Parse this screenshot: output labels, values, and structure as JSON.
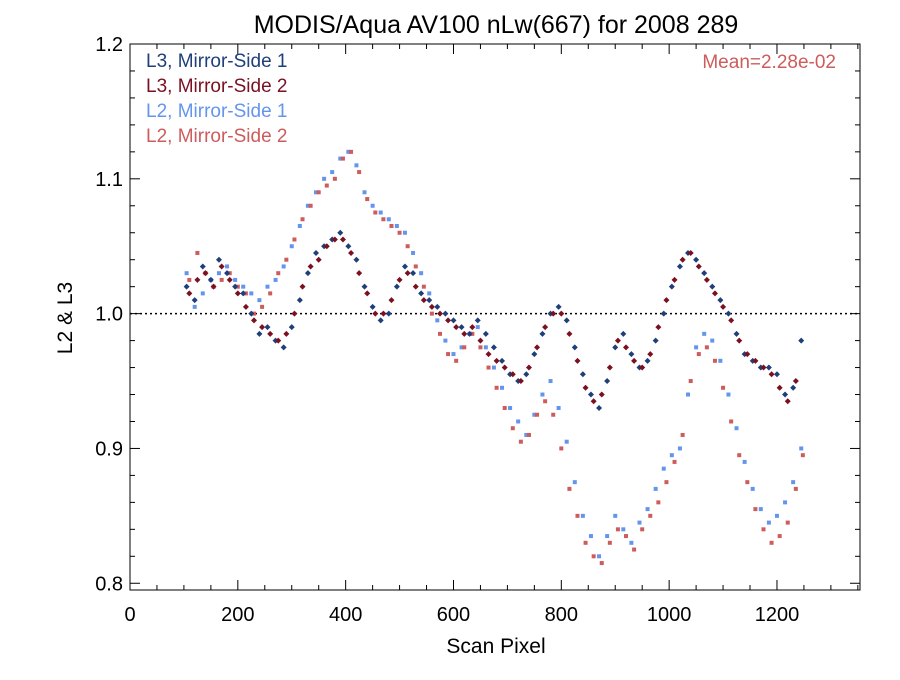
{
  "chart_data": {
    "type": "scatter",
    "title": "MODIS/Aqua AV100 nLw(667) for 2008 289",
    "xlabel": "Scan Pixel",
    "ylabel": "L2 & L3",
    "xlim": [
      0,
      1354
    ],
    "ylim": [
      0.795,
      1.2
    ],
    "x_ticks": [
      0,
      200,
      400,
      600,
      800,
      1000,
      1200
    ],
    "x_tick_labels": [
      "0",
      "200",
      "400",
      "600",
      "800",
      "1000",
      "1200"
    ],
    "y_ticks": [
      0.8,
      0.9,
      1.0,
      1.1,
      1.2
    ],
    "y_tick_labels": [
      "0.8",
      "0.9",
      "1.0",
      "1.1",
      "1.2"
    ],
    "reference_line": {
      "y": 1.0,
      "style": "dotted"
    },
    "annotation": {
      "text": "Mean=2.28e-02",
      "color": "#cd5c5c",
      "position": "top-right"
    },
    "legend_position": "top-left",
    "series": [
      {
        "name": "L3, Mirror-Side 1",
        "color": "#1f3f7a",
        "marker": "diamond",
        "points": [
          [
            105,
            1.02
          ],
          [
            120,
            1.01
          ],
          [
            135,
            1.035
          ],
          [
            150,
            1.025
          ],
          [
            165,
            1.04
          ],
          [
            180,
            1.03
          ],
          [
            195,
            1.02
          ],
          [
            210,
            1.015
          ],
          [
            225,
            1.0
          ],
          [
            240,
            0.985
          ],
          [
            255,
            0.99
          ],
          [
            270,
            0.98
          ],
          [
            285,
            0.975
          ],
          [
            300,
            0.99
          ],
          [
            315,
            1.01
          ],
          [
            330,
            1.03
          ],
          [
            345,
            1.045
          ],
          [
            360,
            1.05
          ],
          [
            375,
            1.055
          ],
          [
            390,
            1.06
          ],
          [
            405,
            1.05
          ],
          [
            420,
            1.04
          ],
          [
            435,
            1.02
          ],
          [
            450,
            1.005
          ],
          [
            465,
            0.995
          ],
          [
            480,
            1.0
          ],
          [
            495,
            1.02
          ],
          [
            510,
            1.035
          ],
          [
            525,
            1.03
          ],
          [
            540,
            1.015
          ],
          [
            555,
            1.01
          ],
          [
            570,
            1.005
          ],
          [
            585,
            1.0
          ],
          [
            600,
            0.995
          ],
          [
            615,
            0.99
          ],
          [
            630,
            0.985
          ],
          [
            645,
            0.995
          ],
          [
            660,
            0.985
          ],
          [
            675,
            0.975
          ],
          [
            690,
            0.965
          ],
          [
            705,
            0.955
          ],
          [
            720,
            0.95
          ],
          [
            735,
            0.955
          ],
          [
            750,
            0.97
          ],
          [
            765,
            0.985
          ],
          [
            780,
            1.0
          ],
          [
            795,
            1.005
          ],
          [
            810,
            0.995
          ],
          [
            825,
            0.975
          ],
          [
            840,
            0.955
          ],
          [
            855,
            0.94
          ],
          [
            870,
            0.93
          ],
          [
            885,
            0.95
          ],
          [
            900,
            0.975
          ],
          [
            915,
            0.985
          ],
          [
            930,
            0.97
          ],
          [
            945,
            0.96
          ],
          [
            960,
            0.965
          ],
          [
            975,
            0.98
          ],
          [
            990,
            1.0
          ],
          [
            1005,
            1.02
          ],
          [
            1020,
            1.035
          ],
          [
            1035,
            1.045
          ],
          [
            1050,
            1.04
          ],
          [
            1065,
            1.03
          ],
          [
            1080,
            1.02
          ],
          [
            1095,
            1.01
          ],
          [
            1110,
            1.0
          ],
          [
            1125,
            0.985
          ],
          [
            1140,
            0.97
          ],
          [
            1155,
            0.965
          ],
          [
            1170,
            0.96
          ],
          [
            1185,
            0.96
          ],
          [
            1200,
            0.955
          ],
          [
            1215,
            0.94
          ],
          [
            1230,
            0.945
          ],
          [
            1245,
            0.98
          ]
        ]
      },
      {
        "name": "L3, Mirror-Side 2",
        "color": "#7a1020",
        "marker": "diamond",
        "points": [
          [
            110,
            1.015
          ],
          [
            125,
            1.025
          ],
          [
            140,
            1.03
          ],
          [
            155,
            1.02
          ],
          [
            170,
            1.035
          ],
          [
            185,
            1.025
          ],
          [
            200,
            1.015
          ],
          [
            215,
            1.005
          ],
          [
            230,
            0.995
          ],
          [
            245,
            0.99
          ],
          [
            260,
            0.985
          ],
          [
            275,
            0.98
          ],
          [
            290,
            0.985
          ],
          [
            305,
            1.0
          ],
          [
            320,
            1.02
          ],
          [
            335,
            1.035
          ],
          [
            350,
            1.04
          ],
          [
            365,
            1.05
          ],
          [
            380,
            1.055
          ],
          [
            395,
            1.055
          ],
          [
            410,
            1.045
          ],
          [
            425,
            1.03
          ],
          [
            440,
            1.015
          ],
          [
            455,
            1.0
          ],
          [
            470,
            1.0
          ],
          [
            485,
            1.01
          ],
          [
            500,
            1.025
          ],
          [
            515,
            1.03
          ],
          [
            530,
            1.02
          ],
          [
            545,
            1.01
          ],
          [
            560,
            1.005
          ],
          [
            575,
            1.0
          ],
          [
            590,
            0.995
          ],
          [
            605,
            0.99
          ],
          [
            620,
            0.985
          ],
          [
            635,
            0.99
          ],
          [
            650,
            0.98
          ],
          [
            665,
            0.97
          ],
          [
            680,
            0.965
          ],
          [
            695,
            0.96
          ],
          [
            710,
            0.955
          ],
          [
            725,
            0.95
          ],
          [
            740,
            0.96
          ],
          [
            755,
            0.975
          ],
          [
            770,
            0.99
          ],
          [
            785,
            1.0
          ],
          [
            800,
            1.0
          ],
          [
            815,
            0.985
          ],
          [
            830,
            0.965
          ],
          [
            845,
            0.945
          ],
          [
            860,
            0.935
          ],
          [
            875,
            0.94
          ],
          [
            890,
            0.96
          ],
          [
            905,
            0.98
          ],
          [
            920,
            0.975
          ],
          [
            935,
            0.965
          ],
          [
            950,
            0.96
          ],
          [
            965,
            0.97
          ],
          [
            980,
            0.99
          ],
          [
            995,
            1.01
          ],
          [
            1010,
            1.025
          ],
          [
            1025,
            1.04
          ],
          [
            1040,
            1.045
          ],
          [
            1055,
            1.035
          ],
          [
            1070,
            1.025
          ],
          [
            1085,
            1.015
          ],
          [
            1100,
            1.005
          ],
          [
            1115,
            0.995
          ],
          [
            1130,
            0.98
          ],
          [
            1145,
            0.97
          ],
          [
            1160,
            0.965
          ],
          [
            1175,
            0.96
          ],
          [
            1190,
            0.955
          ],
          [
            1205,
            0.945
          ],
          [
            1220,
            0.935
          ],
          [
            1235,
            0.95
          ]
        ]
      },
      {
        "name": "L2, Mirror-Side 1",
        "color": "#6495ed",
        "marker": "square",
        "points": [
          [
            105,
            1.03
          ],
          [
            120,
            1.005
          ],
          [
            135,
            1.015
          ],
          [
            150,
            1.025
          ],
          [
            165,
            1.03
          ],
          [
            180,
            1.035
          ],
          [
            195,
            1.025
          ],
          [
            210,
            1.02
          ],
          [
            225,
            1.015
          ],
          [
            240,
            1.01
          ],
          [
            255,
            1.02
          ],
          [
            270,
            1.025
          ],
          [
            285,
            1.035
          ],
          [
            300,
            1.05
          ],
          [
            315,
            1.065
          ],
          [
            330,
            1.08
          ],
          [
            345,
            1.09
          ],
          [
            360,
            1.1
          ],
          [
            375,
            1.105
          ],
          [
            390,
            1.115
          ],
          [
            405,
            1.12
          ],
          [
            420,
            1.11
          ],
          [
            435,
            1.09
          ],
          [
            450,
            1.08
          ],
          [
            465,
            1.075
          ],
          [
            480,
            1.07
          ],
          [
            495,
            1.065
          ],
          [
            510,
            1.06
          ],
          [
            525,
            1.045
          ],
          [
            540,
            1.03
          ],
          [
            555,
            1.015
          ],
          [
            570,
            0.995
          ],
          [
            585,
            0.98
          ],
          [
            600,
            0.97
          ],
          [
            615,
            0.975
          ],
          [
            630,
            0.985
          ],
          [
            645,
            0.99
          ],
          [
            660,
            0.975
          ],
          [
            675,
            0.96
          ],
          [
            690,
            0.945
          ],
          [
            705,
            0.93
          ],
          [
            720,
            0.92
          ],
          [
            735,
            0.91
          ],
          [
            750,
            0.925
          ],
          [
            765,
            0.94
          ],
          [
            780,
            0.95
          ],
          [
            795,
            0.93
          ],
          [
            810,
            0.905
          ],
          [
            825,
            0.875
          ],
          [
            840,
            0.85
          ],
          [
            855,
            0.835
          ],
          [
            870,
            0.82
          ],
          [
            885,
            0.835
          ],
          [
            900,
            0.85
          ],
          [
            915,
            0.84
          ],
          [
            930,
            0.83
          ],
          [
            945,
            0.845
          ],
          [
            960,
            0.855
          ],
          [
            975,
            0.87
          ],
          [
            990,
            0.885
          ],
          [
            1005,
            0.895
          ],
          [
            1020,
            0.9
          ],
          [
            1035,
            0.94
          ],
          [
            1050,
            0.975
          ],
          [
            1065,
            0.985
          ],
          [
            1080,
            0.98
          ],
          [
            1095,
            0.965
          ],
          [
            1110,
            0.94
          ],
          [
            1125,
            0.915
          ],
          [
            1140,
            0.89
          ],
          [
            1155,
            0.87
          ],
          [
            1170,
            0.855
          ],
          [
            1185,
            0.845
          ],
          [
            1200,
            0.85
          ],
          [
            1215,
            0.86
          ],
          [
            1230,
            0.875
          ],
          [
            1245,
            0.9
          ]
        ]
      },
      {
        "name": "L2, Mirror-Side 2",
        "color": "#cd5c5c",
        "marker": "square",
        "points": [
          [
            110,
            1.025
          ],
          [
            125,
            1.045
          ],
          [
            140,
            1.03
          ],
          [
            155,
            1.02
          ],
          [
            170,
            1.025
          ],
          [
            185,
            1.03
          ],
          [
            200,
            1.02
          ],
          [
            215,
            1.015
          ],
          [
            230,
            1.0
          ],
          [
            245,
            1.005
          ],
          [
            260,
            1.015
          ],
          [
            275,
            1.03
          ],
          [
            290,
            1.04
          ],
          [
            305,
            1.055
          ],
          [
            320,
            1.07
          ],
          [
            335,
            1.08
          ],
          [
            350,
            1.09
          ],
          [
            365,
            1.095
          ],
          [
            380,
            1.1
          ],
          [
            395,
            1.115
          ],
          [
            410,
            1.12
          ],
          [
            425,
            1.105
          ],
          [
            440,
            1.085
          ],
          [
            455,
            1.075
          ],
          [
            470,
            1.07
          ],
          [
            485,
            1.065
          ],
          [
            500,
            1.06
          ],
          [
            515,
            1.05
          ],
          [
            530,
            1.035
          ],
          [
            545,
            1.02
          ],
          [
            560,
            1.0
          ],
          [
            575,
            0.985
          ],
          [
            590,
            0.97
          ],
          [
            605,
            0.965
          ],
          [
            620,
            0.975
          ],
          [
            635,
            0.985
          ],
          [
            650,
            0.975
          ],
          [
            665,
            0.96
          ],
          [
            680,
            0.945
          ],
          [
            695,
            0.93
          ],
          [
            710,
            0.915
          ],
          [
            725,
            0.905
          ],
          [
            740,
            0.91
          ],
          [
            755,
            0.925
          ],
          [
            770,
            0.935
          ],
          [
            785,
            0.925
          ],
          [
            800,
            0.9
          ],
          [
            815,
            0.87
          ],
          [
            830,
            0.85
          ],
          [
            845,
            0.83
          ],
          [
            860,
            0.82
          ],
          [
            875,
            0.815
          ],
          [
            890,
            0.83
          ],
          [
            905,
            0.84
          ],
          [
            920,
            0.835
          ],
          [
            935,
            0.825
          ],
          [
            950,
            0.84
          ],
          [
            965,
            0.85
          ],
          [
            980,
            0.86
          ],
          [
            995,
            0.875
          ],
          [
            1010,
            0.89
          ],
          [
            1025,
            0.91
          ],
          [
            1040,
            0.95
          ],
          [
            1055,
            0.97
          ],
          [
            1070,
            0.975
          ],
          [
            1085,
            0.965
          ],
          [
            1100,
            0.945
          ],
          [
            1115,
            0.92
          ],
          [
            1130,
            0.895
          ],
          [
            1145,
            0.875
          ],
          [
            1160,
            0.855
          ],
          [
            1175,
            0.84
          ],
          [
            1190,
            0.83
          ],
          [
            1205,
            0.835
          ],
          [
            1220,
            0.845
          ],
          [
            1235,
            0.87
          ],
          [
            1248,
            0.895
          ]
        ]
      }
    ]
  }
}
